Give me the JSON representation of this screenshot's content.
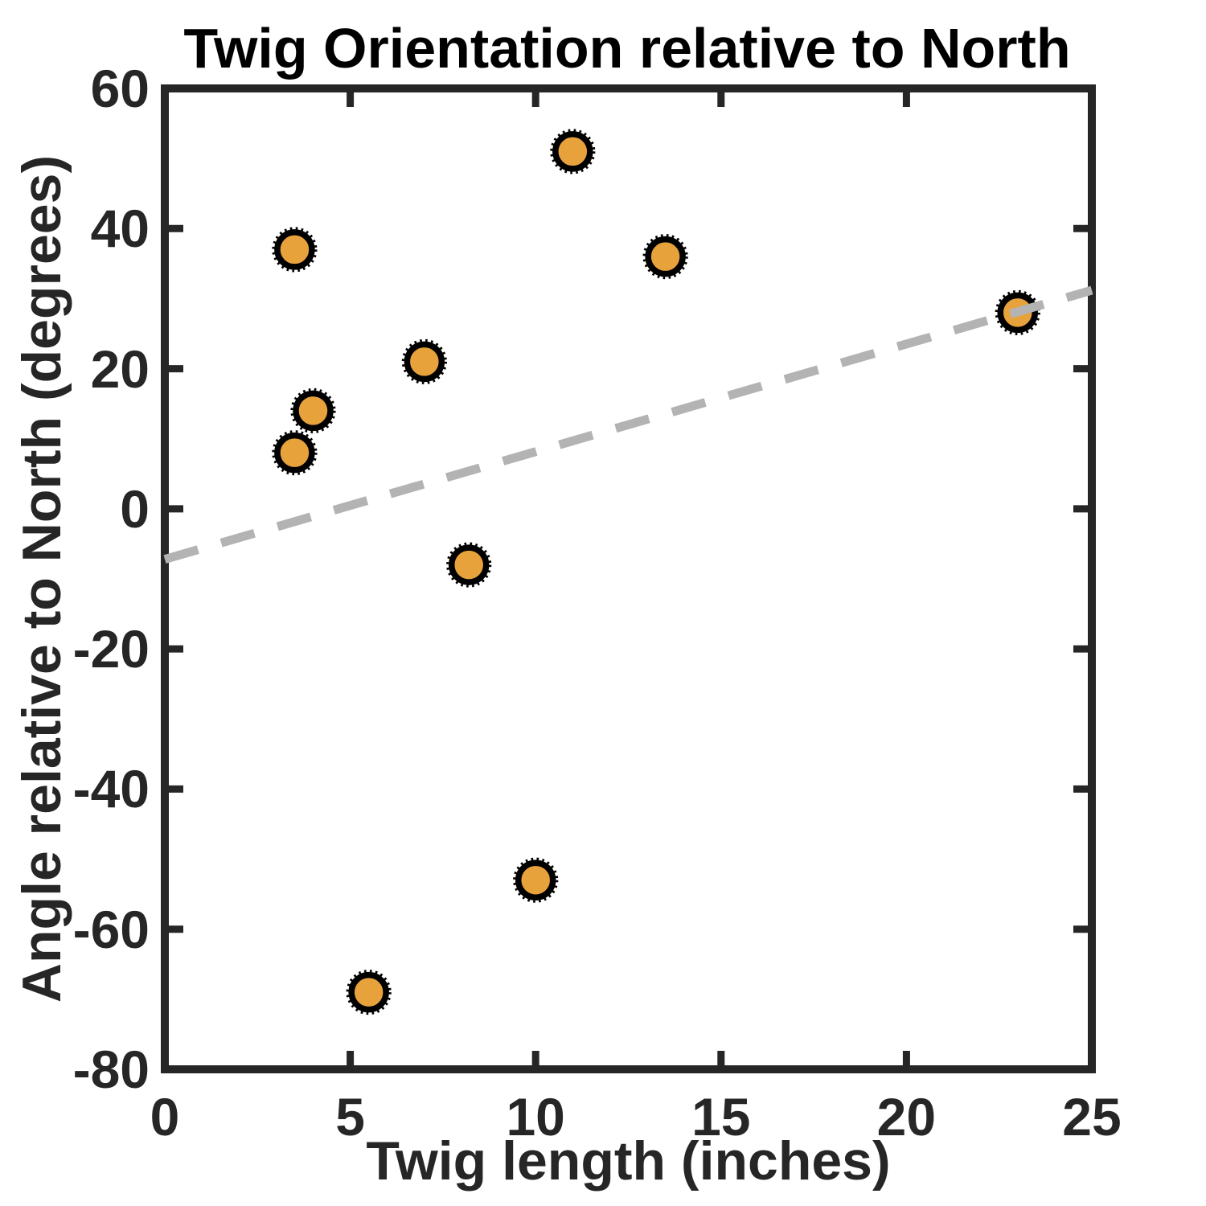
{
  "figure": {
    "background": "#ffffff"
  },
  "chart_data": {
    "type": "scatter",
    "title": "Twig Orientation relative to North",
    "xlabel": "Twig length (inches)",
    "ylabel": "Angle relative to North (degrees)",
    "xlim": [
      0,
      25
    ],
    "ylim": [
      -80,
      60
    ],
    "x_ticks": [
      0,
      5,
      10,
      15,
      20,
      25
    ],
    "y_ticks": [
      -80,
      -60,
      -40,
      -20,
      0,
      20,
      40,
      60
    ],
    "grid": false,
    "legend": "none",
    "points": [
      {
        "x": 3.5,
        "y": 37
      },
      {
        "x": 3.5,
        "y": 8
      },
      {
        "x": 4,
        "y": 14
      },
      {
        "x": 5.5,
        "y": -69
      },
      {
        "x": 7,
        "y": 21
      },
      {
        "x": 8.2,
        "y": -8
      },
      {
        "x": 10,
        "y": -53
      },
      {
        "x": 11,
        "y": 51
      },
      {
        "x": 13.5,
        "y": 36
      },
      {
        "x": 23,
        "y": 28
      }
    ],
    "trendline": {
      "style": "dashed",
      "x0": 0,
      "y0": -7.2,
      "x1": 25,
      "y1": 31.2
    },
    "marker": {
      "shape": "circle",
      "fill": "#E8A23C",
      "edge": "#000000",
      "edge_style": "dotted-thick"
    },
    "colors": {
      "axis": "#262626",
      "title": "#000000",
      "trendline": "#b3b3b3",
      "marker_fill": "#E8A23C",
      "marker_edge": "#000000"
    }
  }
}
